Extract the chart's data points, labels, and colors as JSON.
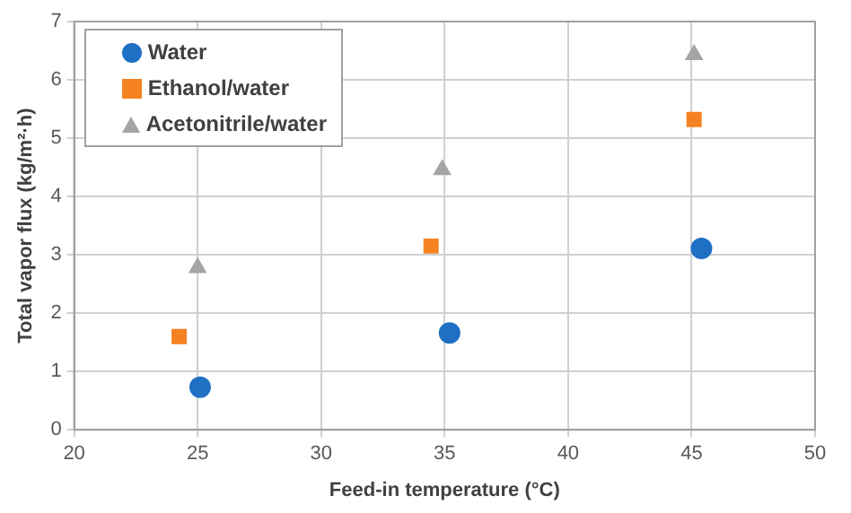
{
  "chart_data": {
    "type": "scatter",
    "xlabel": "Feed-in temperature (°C)",
    "ylabel": "Total vapor flux (kg/m²·h)",
    "xlim": [
      20,
      50
    ],
    "xticks": [
      20,
      25,
      30,
      35,
      40,
      45,
      50
    ],
    "ylim": [
      0,
      7
    ],
    "yticks": [
      0,
      1,
      2,
      3,
      4,
      5,
      6,
      7
    ],
    "grid": true,
    "legend": "top left",
    "series": [
      {
        "name": "Water",
        "color": "#1f6fc5",
        "marker": "circle",
        "x": [
          25.1,
          35.2,
          45.4
        ],
        "values": [
          0.73,
          1.66,
          3.11
        ]
      },
      {
        "name": "Ethanol/water",
        "color": "#f58220",
        "marker": "square",
        "x": [
          24.25,
          34.45,
          45.1
        ],
        "values": [
          1.6,
          3.15,
          5.32
        ]
      },
      {
        "name": "Acetonitrile/water",
        "color": "#a5a5a5",
        "marker": "triangle",
        "x": [
          25.0,
          34.9,
          45.1
        ],
        "values": [
          2.78,
          4.46,
          6.43
        ]
      }
    ]
  }
}
